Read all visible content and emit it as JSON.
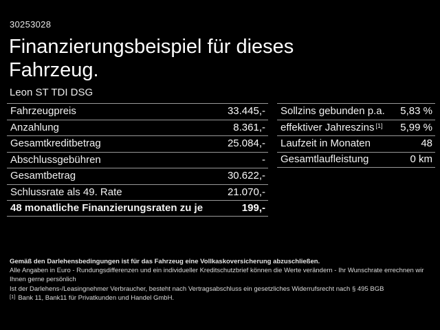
{
  "header": {
    "vehicle_id": "30253028",
    "title_line1": "Finanzierungsbeispiel für dieses",
    "title_line2": "Fahrzeug.",
    "subtitle": "Leon ST TDI DSG"
  },
  "finance_table": {
    "rows": [
      {
        "label": "Fahrzeugpreis",
        "value": "33.445,-"
      },
      {
        "label": "Anzahlung",
        "value": "8.361,-"
      },
      {
        "label": "Gesamtkreditbetrag",
        "value": "25.084,-"
      },
      {
        "label": "Abschlussgebühren",
        "value": "-"
      },
      {
        "label": "Gesamtbetrag",
        "value": "30.622,-"
      },
      {
        "label": "Schlussrate als 49. Rate",
        "value": "21.070,-"
      },
      {
        "label": "48 monatliche Finanzierungsraten zu je",
        "value": "199,-"
      }
    ]
  },
  "conditions_table": {
    "rows": [
      {
        "label": "Sollzins gebunden p.a.",
        "value": "5,83 %"
      },
      {
        "label": "effektiver Jahreszins",
        "sup": "[1]",
        "value": "5,99 %"
      },
      {
        "label": "Laufzeit in Monaten",
        "value": "48"
      },
      {
        "label": "Gesamtlaufleistung",
        "value": "0 km"
      }
    ]
  },
  "footer": {
    "bold_note": "Gemäß den Darlehensbedingungen ist für das Fahrzeug eine Vollkaskoversicherung abzuschließen.",
    "note_line1": "Alle Angaben in Euro - Rundungsdifferenzen und ein individueller Kreditschutzbrief können die Werte verändern - Ihr Wunschrate errechnen wir Ihnen gerne persönlich",
    "note_line2": "Ist der Darlehens-/Leasingnehmer Verbraucher, besteht nach Vertragsabschluss ein gesetzliches Widerrufsrecht nach § 495 BGB",
    "footnote_marker": "[1]",
    "footnote_text": "Bank 11, Bank11 für Privatkunden und Handel GmbH."
  },
  "colors": {
    "background": "#000000",
    "text": "#f2f2f2",
    "divider": "#9a9a9a"
  }
}
